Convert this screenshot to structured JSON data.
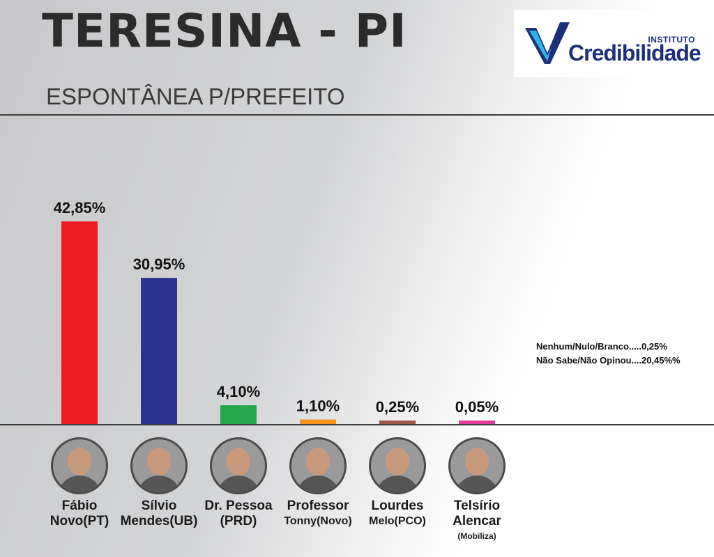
{
  "header": {
    "title": "TERESINA - PI",
    "subtitle": "ESPONTÂNEA P/PREFEITO",
    "logo_small": "INSTITUTO",
    "logo_big": "Credibilidade"
  },
  "colors": {
    "accent_logo": "#1e2f7a",
    "logo_check": "#2fb3e8"
  },
  "chart_data": {
    "type": "bar",
    "categories": [
      "Fábio Novo(PT)",
      "Sílvio Mendes(UB)",
      "Dr. Pessoa (PRD)",
      "Professor Tonny(Novo)",
      "Lourdes Melo(PCO)",
      "Telsírio Alencar (Mobiliza)"
    ],
    "values": [
      42.85,
      30.95,
      4.1,
      1.1,
      0.25,
      0.05
    ],
    "labels": [
      "42,85%",
      "30,95%",
      "4,10%",
      "1,10%",
      "0,25%",
      "0,05%"
    ],
    "colors": [
      "#ee1c24",
      "#2e3192",
      "#22a84a",
      "#f7941d",
      "#a0574a",
      "#e23d9c"
    ],
    "ylim": [
      0,
      42.85
    ],
    "grid": false,
    "legend": "none"
  },
  "candidates": [
    {
      "line1": "Fábio",
      "line2": "Novo(PT)",
      "line3": ""
    },
    {
      "line1": "Sílvio",
      "line2": "Mendes(UB)",
      "line3": ""
    },
    {
      "line1": "Dr. Pessoa",
      "line2": "(PRD)",
      "line3": ""
    },
    {
      "line1": "Professor",
      "line2": "Tonny(Novo)",
      "line3": ""
    },
    {
      "line1": "Lourdes",
      "line2": "Melo(PCO)",
      "line3": ""
    },
    {
      "line1": "Telsírio",
      "line2": "Alencar",
      "line3": "(Mobiliza)"
    }
  ],
  "notes": {
    "line1": "Nenhum/Nulo/Branco.....0,25%",
    "line2": "Não Sabe/Não Opinou....20,45%%"
  }
}
